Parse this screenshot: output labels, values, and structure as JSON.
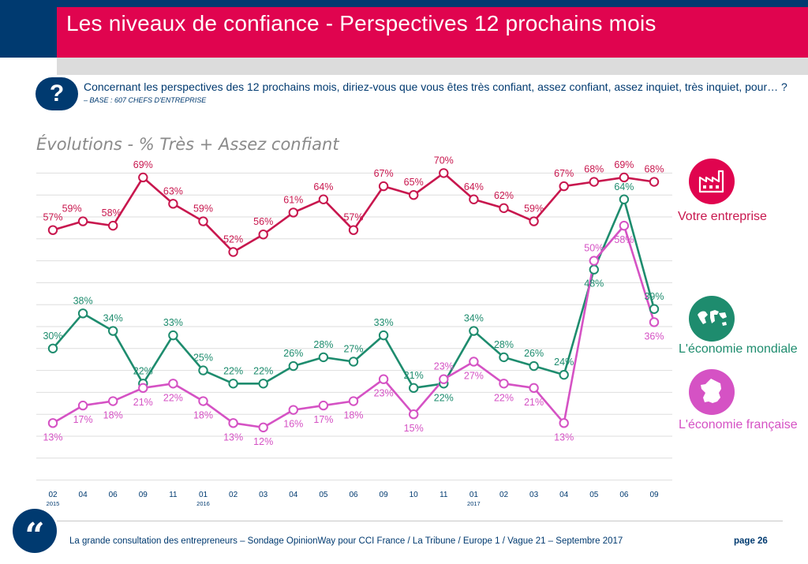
{
  "header": {
    "title": "Les niveaux de confiance - Perspectives 12 prochains mois",
    "question_mark": "?",
    "question": "Concernant les perspectives des 12 prochains mois, diriez-vous que vous êtes très confiant, assez confiant, assez inquiet, très inquiet, pour… ?",
    "base": "– BASE : 607 CHEFS D'ENTREPRISE"
  },
  "colors": {
    "navy": "#003a70",
    "red": "#e0044f",
    "crimson": "#c8174e",
    "teal": "#1e8c6e",
    "magenta": "#d552c4"
  },
  "chart_data": {
    "type": "line",
    "title": "Évolutions - % Très + Assez confiant",
    "categories": [
      "02",
      "04",
      "06",
      "09",
      "11",
      "01",
      "02",
      "03",
      "04",
      "05",
      "06",
      "09",
      "10",
      "11",
      "01",
      "02",
      "03",
      "04",
      "05",
      "06",
      "09"
    ],
    "year_labels": [
      {
        "index": 0,
        "label": "2015"
      },
      {
        "index": 5,
        "label": "2016"
      },
      {
        "index": 14,
        "label": "2017"
      }
    ],
    "ylim": [
      0,
      80
    ],
    "grid": true,
    "series": [
      {
        "name": "Votre entreprise",
        "color": "#c8174e",
        "icon": "factory-icon",
        "values": [
          57,
          59,
          58,
          69,
          63,
          59,
          52,
          56,
          61,
          64,
          57,
          67,
          65,
          70,
          64,
          62,
          59,
          67,
          68,
          69,
          68
        ]
      },
      {
        "name": "L'économie mondiale",
        "color": "#1e8c6e",
        "icon": "world-map-icon",
        "values": [
          30,
          38,
          34,
          22,
          33,
          25,
          22,
          22,
          26,
          28,
          27,
          33,
          21,
          22,
          34,
          28,
          26,
          24,
          48,
          64,
          39
        ]
      },
      {
        "name": "L'économie française",
        "color": "#d552c4",
        "icon": "france-map-icon",
        "values": [
          13,
          17,
          18,
          21,
          22,
          18,
          13,
          12,
          16,
          17,
          18,
          23,
          15,
          23,
          27,
          22,
          21,
          13,
          50,
          58,
          36
        ]
      }
    ]
  },
  "footer": {
    "quote_icon": "quote-icon",
    "text": "La grande consultation des entrepreneurs – Sondage OpinionWay pour CCI France / La Tribune / Europe 1 / Vague 21 – Septembre 2017",
    "page": "page 26"
  }
}
